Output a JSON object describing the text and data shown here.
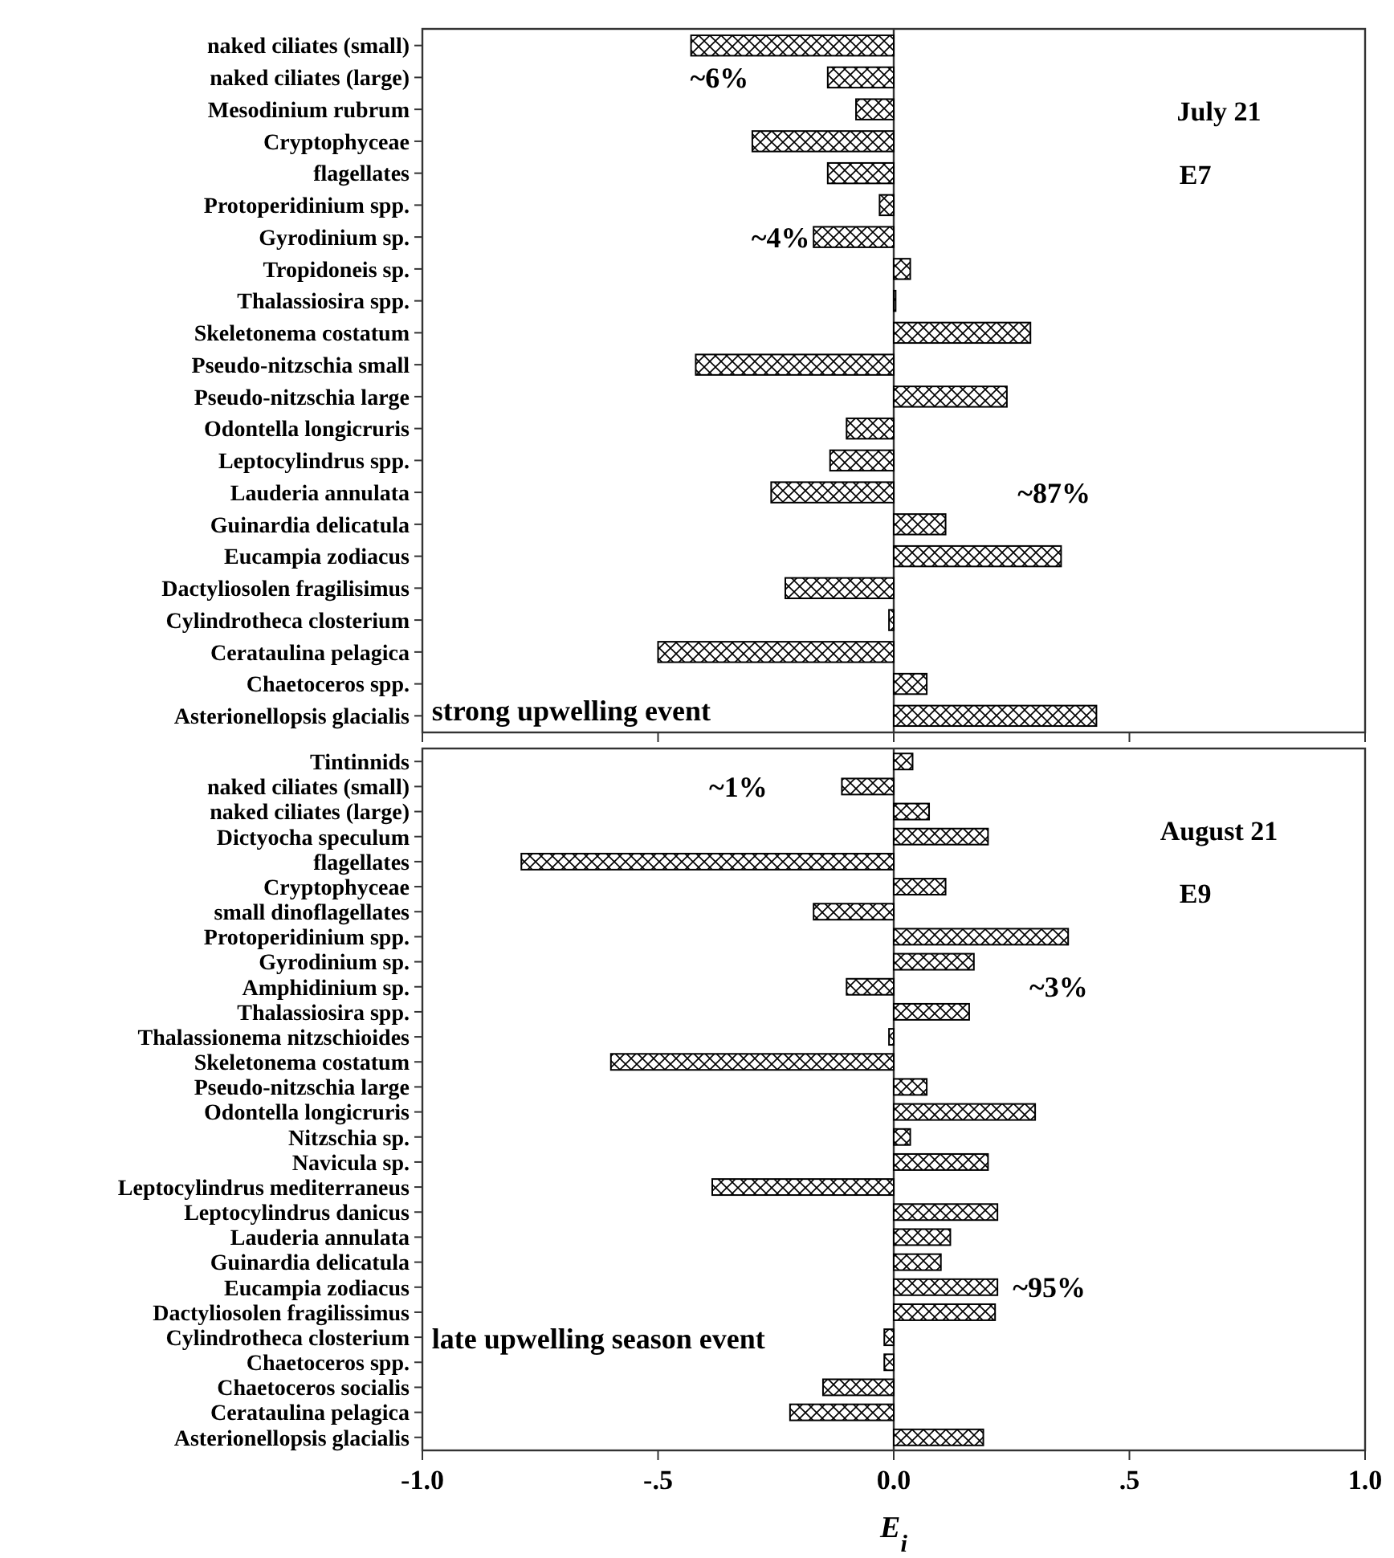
{
  "chart_data": [
    {
      "type": "bar",
      "orientation": "horizontal",
      "title": "July 21",
      "subtitle": "E7",
      "color": "#000000",
      "xlim": [
        -1,
        1
      ],
      "xticks": [
        -1,
        -0.5,
        0,
        0.5,
        1
      ],
      "tick_labels": "y",
      "categories": [
        "naked ciliates (small)",
        "naked ciliates (large)",
        "Mesodinium rubrum",
        "Cryptophyceae",
        "flagellates",
        "Protoperidinium spp.",
        "Gyrodinium sp.",
        "Tropidoneis sp.",
        "Thalassiosira spp.",
        "Skeletonema costatum",
        "Pseudo-nitzschia small",
        "Pseudo-nitzschia large",
        "Odontella longicruris",
        "Leptocylindrus spp.",
        "Lauderia annulata",
        "Guinardia delicatula",
        "Eucampia zodiacus",
        "Dactyliosolen fragilisimus",
        "Cylindrotheca closterium",
        "Cerataulina pelagica",
        "Chaetoceros spp.",
        "Asterionellopsis glacialis"
      ],
      "values": [
        -0.43,
        -0.14,
        -0.08,
        -0.3,
        -0.14,
        -0.03,
        -0.17,
        0.035,
        0.004,
        0.29,
        -0.42,
        0.24,
        -0.1,
        -0.135,
        -0.26,
        0.11,
        0.355,
        -0.23,
        -0.01,
        -0.5,
        0.07,
        0.43
      ],
      "annotations": [
        "~6%",
        "~4%",
        "~87%",
        "strong upwelling event"
      ]
    },
    {
      "type": "bar",
      "orientation": "horizontal",
      "title": "August 21",
      "subtitle": "E9",
      "color": "#000000",
      "xlim": [
        -1,
        1
      ],
      "xticks": [
        {
          "value": -1,
          "label": "-1.0"
        },
        {
          "value": -0.5,
          "label": "-.5"
        },
        {
          "value": 0,
          "label": "0.0"
        },
        {
          "value": 0.5,
          "label": ".5"
        },
        {
          "value": 1,
          "label": "1.0"
        }
      ],
      "xlabel": "E$_{i}$",
      "categories": [
        "Tintinnids",
        "naked ciliates (small)",
        "naked ciliates (large)",
        "Dictyocha speculum",
        "flagellates",
        "Cryptophyceae ",
        "small dinoflagellates",
        "Protoperidinium spp.",
        "Gyrodinium sp.",
        "Amphidinium sp.",
        "Thalassiosira spp.",
        "Thalassionema nitzschioides",
        "Skeletonema costatum",
        "Pseudo-nitzschia large",
        "Odontella longicruris",
        "Nitzschia sp.",
        "Navicula sp.",
        "Leptocylindrus mediterraneus",
        "Leptocylindrus danicus",
        "Lauderia annulata",
        "Guinardia delicatula",
        "Eucampia zodiacus",
        "Dactyliosolen fragilissimus",
        "Cylindrotheca closterium",
        "Chaetoceros spp.",
        "Chaetoceros socialis ",
        "Cerataulina pelagica",
        "Asterionellopsis glacialis"
      ],
      "values": [
        0.04,
        -0.11,
        0.075,
        0.2,
        -0.79,
        0.11,
        -0.17,
        0.37,
        0.17,
        -0.1,
        0.16,
        -0.01,
        -0.6,
        0.07,
        0.3,
        0.035,
        0.2,
        -0.385,
        0.22,
        0.12,
        0.1,
        0.22,
        0.215,
        -0.02,
        -0.02,
        -0.15,
        -0.22,
        0.19
      ],
      "annotations": [
        "~1%",
        "~3%",
        "~95%",
        "late upwelling season event"
      ]
    }
  ]
}
